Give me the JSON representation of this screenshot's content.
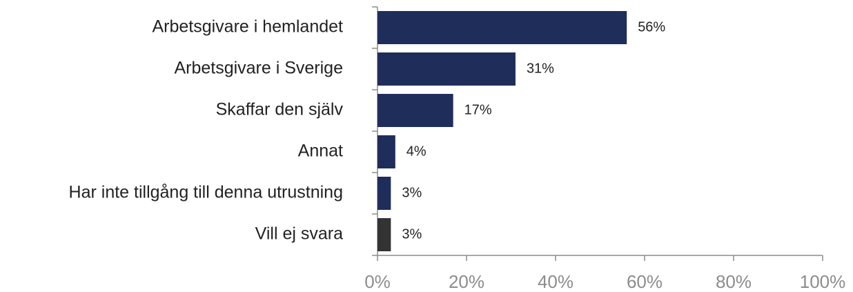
{
  "chart_data": {
    "type": "hbar",
    "categories": [
      "Arbetsgivare i hemlandet",
      "Arbetsgivare i Sverige",
      "Skaffar den själv",
      "Annat",
      "Har inte tillgång till denna utrustning",
      "Vill ej svara"
    ],
    "values": [
      56,
      31,
      17,
      4,
      3,
      3
    ],
    "value_labels": [
      "56%",
      "31%",
      "17%",
      "4%",
      "3%",
      "3%"
    ],
    "colors": [
      "#1f2d5a",
      "#1f2d5a",
      "#1f2d5a",
      "#1f2d5a",
      "#1f2d5a",
      "#333333"
    ],
    "xlim": [
      0,
      100
    ],
    "xticks": [
      {
        "value": 0,
        "label": "0%"
      },
      {
        "value": 20,
        "label": "20%"
      },
      {
        "value": 40,
        "label": "40%"
      },
      {
        "value": 60,
        "label": "60%"
      },
      {
        "value": 80,
        "label": "80%"
      },
      {
        "value": 100,
        "label": "100%"
      }
    ]
  }
}
